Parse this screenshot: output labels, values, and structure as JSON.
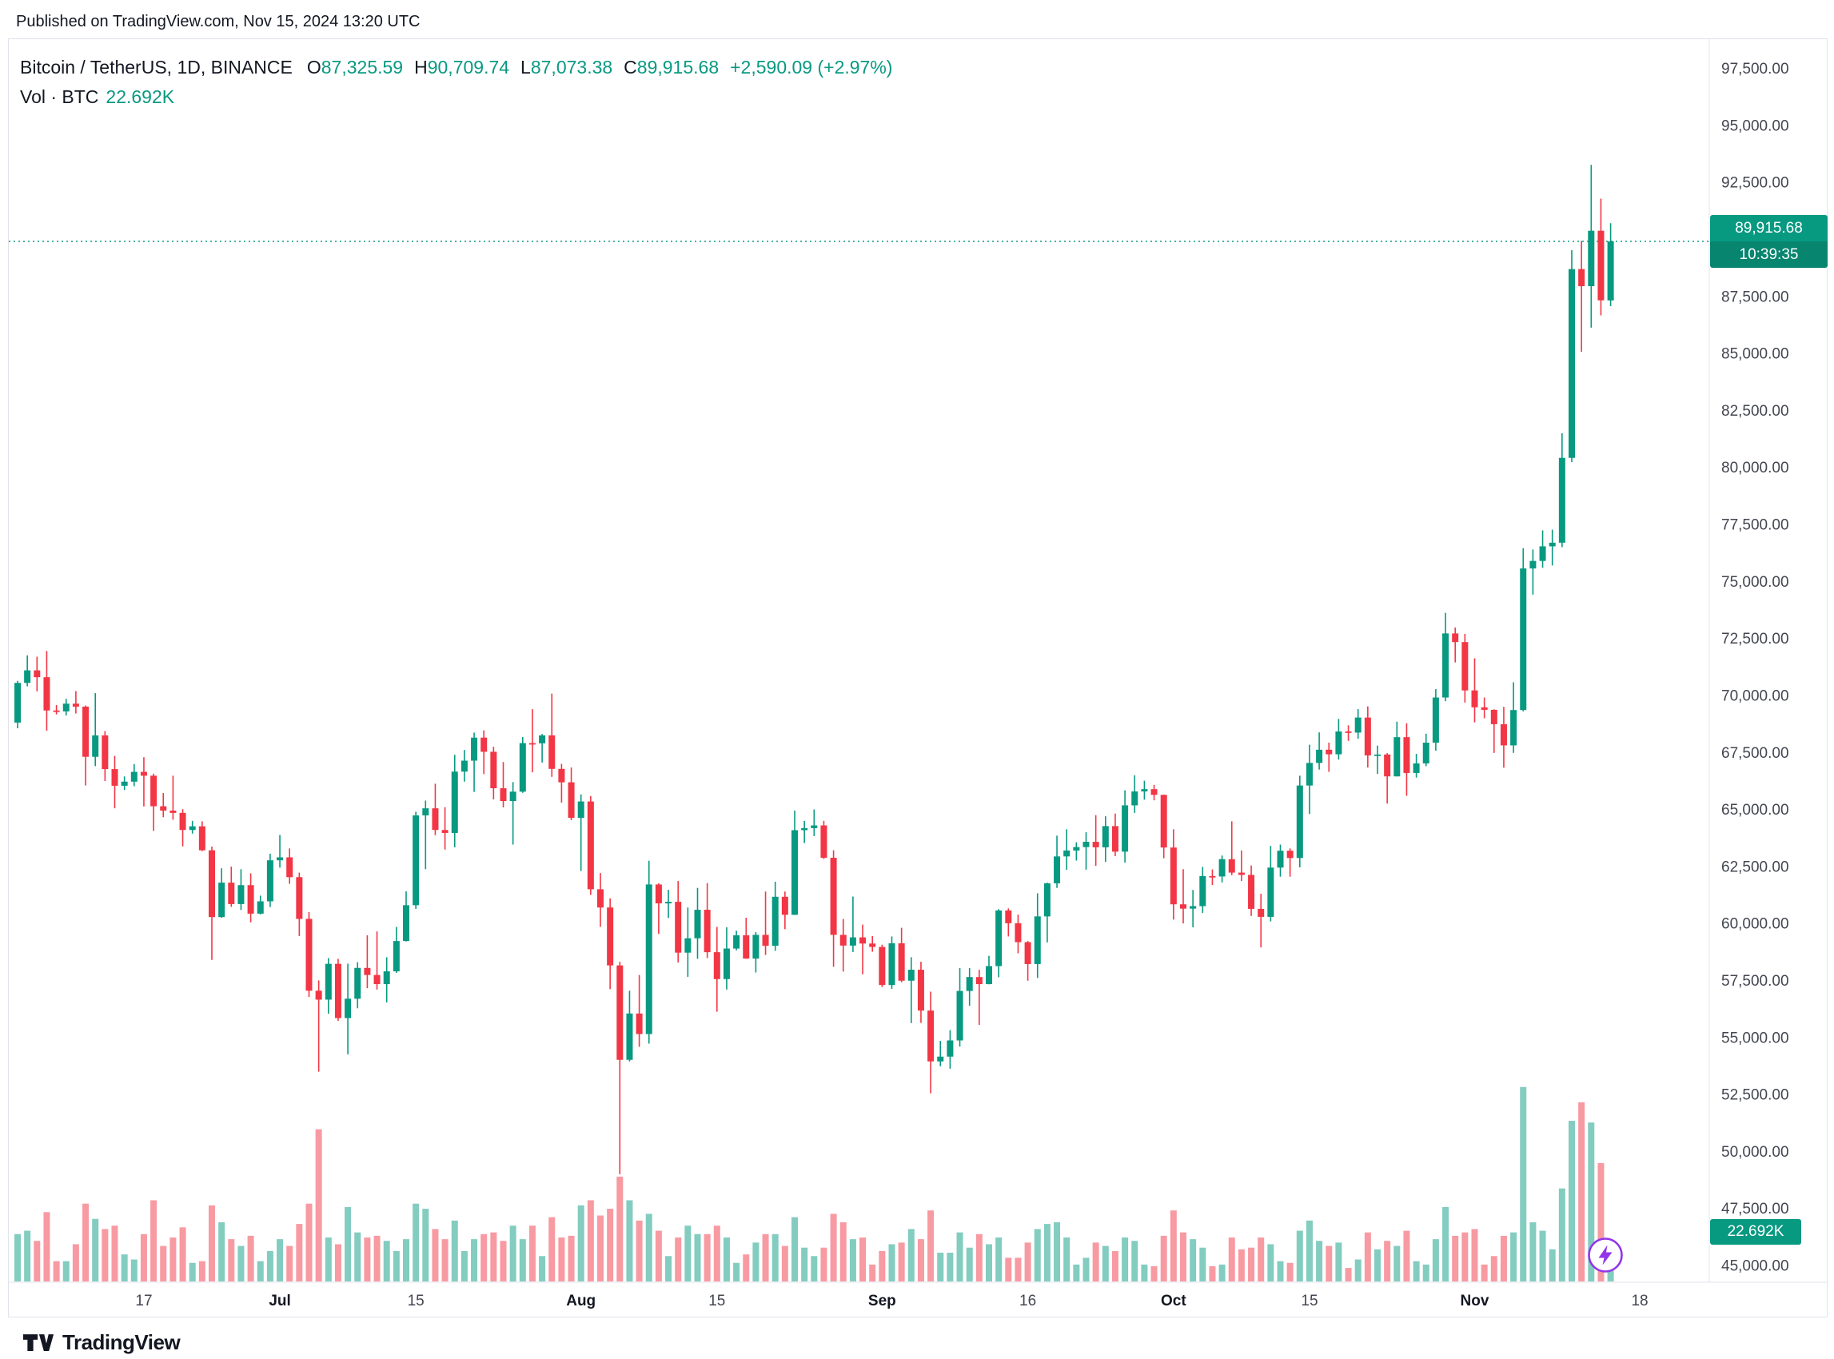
{
  "publish_line": "Published on TradingView.com, Nov 15, 2024 13:20 UTC",
  "header": {
    "symbol": "Bitcoin / TetherUS, 1D, BINANCE",
    "o_label": "O",
    "open": "87,325.59",
    "h_label": "H",
    "high": "90,709.74",
    "l_label": "L",
    "low": "87,073.38",
    "c_label": "C",
    "close": "89,915.68",
    "change": "+2,590.09 (+2.97%)",
    "vol_label": "Vol · BTC",
    "vol_value": "22.692K"
  },
  "price_badge": {
    "price": "89,915.68",
    "countdown": "10:39:35"
  },
  "volume_badge": "22.692K",
  "logo_text": "TradingView",
  "colors": {
    "up": "#089981",
    "down": "#f23645",
    "volume_up": "rgba(8,153,129,0.5)",
    "volume_down": "rgba(242,54,69,0.5)",
    "badge": "#089981",
    "separator": "#e0e3eb",
    "boost": "#9334ea",
    "axis_text": "#434651"
  },
  "chart_data": {
    "type": "candlestick",
    "title": "Bitcoin / TetherUS, 1D, BINANCE",
    "last_price": 89915.68,
    "countdown": "10:39:35",
    "volume_unit": "K BTC",
    "y_axis": {
      "min": 45000,
      "max": 97500,
      "step": 2500,
      "format": "#,##0.00"
    },
    "x_ticks": [
      {
        "label": "17",
        "index": 13,
        "major": false
      },
      {
        "label": "Jul",
        "index": 27,
        "major": true
      },
      {
        "label": "15",
        "index": 41,
        "major": false
      },
      {
        "label": "Aug",
        "index": 58,
        "major": true
      },
      {
        "label": "15",
        "index": 72,
        "major": false
      },
      {
        "label": "Sep",
        "index": 89,
        "major": true
      },
      {
        "label": "16",
        "index": 104,
        "major": false
      },
      {
        "label": "Oct",
        "index": 119,
        "major": true
      },
      {
        "label": "15",
        "index": 133,
        "major": false
      },
      {
        "label": "Nov",
        "index": 150,
        "major": true
      },
      {
        "label": "18",
        "index": 167,
        "major": false
      }
    ],
    "columns": [
      "date",
      "open",
      "high",
      "low",
      "close",
      "volume_k_btc"
    ],
    "rows": [
      [
        "Jun 4",
        68810,
        70640,
        68560,
        70550,
        28
      ],
      [
        "Jun 5",
        70550,
        71760,
        70400,
        71100,
        30
      ],
      [
        "Jun 6",
        71100,
        71700,
        70180,
        70800,
        24
      ],
      [
        "Jun 7",
        70800,
        71950,
        68450,
        69340,
        41
      ],
      [
        "Jun 8",
        69340,
        69580,
        69170,
        69300,
        12
      ],
      [
        "Jun 9",
        69300,
        69850,
        69120,
        69640,
        12
      ],
      [
        "Jun 10",
        69640,
        70190,
        69210,
        69510,
        22
      ],
      [
        "Jun 11",
        69510,
        69560,
        66050,
        67310,
        46
      ],
      [
        "Jun 12",
        67310,
        70100,
        66900,
        68250,
        37
      ],
      [
        "Jun 13",
        68250,
        68440,
        66250,
        66770,
        31
      ],
      [
        "Jun 14",
        66770,
        67350,
        65050,
        66040,
        33
      ],
      [
        "Jun 15",
        66040,
        66450,
        65850,
        66220,
        16
      ],
      [
        "Jun 16",
        66220,
        66990,
        66020,
        66650,
        13
      ],
      [
        "Jun 17",
        66650,
        67290,
        65130,
        66480,
        28
      ],
      [
        "Jun 18",
        66480,
        66570,
        64060,
        65140,
        48
      ],
      [
        "Jun 19",
        65140,
        65720,
        64660,
        64950,
        21
      ],
      [
        "Jun 20",
        64950,
        66480,
        64550,
        64850,
        26
      ],
      [
        "Jun 21",
        64850,
        65010,
        63380,
        64100,
        32
      ],
      [
        "Jun 22",
        64100,
        64500,
        63940,
        64260,
        11
      ],
      [
        "Jun 23",
        64260,
        64480,
        63170,
        63210,
        12
      ],
      [
        "Jun 24",
        63210,
        63370,
        58400,
        60280,
        45
      ],
      [
        "Jun 25",
        60280,
        62420,
        60250,
        61790,
        35
      ],
      [
        "Jun 26",
        61790,
        62490,
        60730,
        60850,
        25
      ],
      [
        "Jun 27",
        60850,
        62380,
        60590,
        61680,
        21
      ],
      [
        "Jun 28",
        61680,
        62200,
        60050,
        60430,
        27
      ],
      [
        "Jun 29",
        60430,
        61220,
        60400,
        60970,
        12
      ],
      [
        "Jun 30",
        60970,
        63060,
        60720,
        62770,
        18
      ],
      [
        "Jul 1",
        62770,
        63880,
        62450,
        62900,
        25
      ],
      [
        "Jul 2",
        62900,
        63290,
        61740,
        62030,
        21
      ],
      [
        "Jul 3",
        62030,
        62230,
        59450,
        60200,
        34
      ],
      [
        "Jul 4",
        60200,
        60500,
        56780,
        57050,
        46
      ],
      [
        "Jul 5",
        57050,
        57500,
        53500,
        56660,
        90
      ],
      [
        "Jul 6",
        56660,
        58480,
        56040,
        58230,
        26
      ],
      [
        "Jul 7",
        58230,
        58450,
        55730,
        55850,
        22
      ],
      [
        "Jul 8",
        55850,
        58240,
        54260,
        56700,
        44
      ],
      [
        "Jul 9",
        56700,
        58300,
        56280,
        58050,
        29
      ],
      [
        "Jul 10",
        58050,
        59480,
        57160,
        57740,
        26
      ],
      [
        "Jul 11",
        57740,
        59650,
        57100,
        57340,
        27
      ],
      [
        "Jul 12",
        57340,
        58520,
        56540,
        57900,
        24
      ],
      [
        "Jul 13",
        57900,
        59850,
        57830,
        59230,
        18
      ],
      [
        "Jul 14",
        59230,
        61410,
        59210,
        60800,
        25
      ],
      [
        "Jul 15",
        60800,
        64900,
        60640,
        64740,
        46
      ],
      [
        "Jul 16",
        64740,
        65390,
        62380,
        65050,
        43
      ],
      [
        "Jul 17",
        65050,
        66130,
        63870,
        64100,
        31
      ],
      [
        "Jul 18",
        64100,
        65100,
        63240,
        63970,
        25
      ],
      [
        "Jul 19",
        63970,
        67400,
        63340,
        66660,
        36
      ],
      [
        "Jul 20",
        66660,
        67610,
        66220,
        67140,
        18
      ],
      [
        "Jul 21",
        67140,
        68370,
        65770,
        68150,
        25
      ],
      [
        "Jul 22",
        68150,
        68470,
        66550,
        67530,
        28
      ],
      [
        "Jul 23",
        67530,
        67750,
        65440,
        65930,
        29
      ],
      [
        "Jul 24",
        65930,
        67080,
        65090,
        65370,
        24
      ],
      [
        "Jul 25",
        65370,
        66200,
        63460,
        65780,
        33
      ],
      [
        "Jul 26",
        65780,
        68180,
        65730,
        67910,
        25
      ],
      [
        "Jul 27",
        67910,
        69400,
        66630,
        67900,
        33
      ],
      [
        "Jul 28",
        67900,
        68310,
        67060,
        68250,
        15
      ],
      [
        "Jul 29",
        68250,
        70080,
        66430,
        66780,
        38
      ],
      [
        "Jul 30",
        66780,
        67000,
        65300,
        66190,
        26
      ],
      [
        "Jul 31",
        66190,
        66840,
        64530,
        64630,
        27
      ],
      [
        "Aug 1",
        64630,
        65660,
        62300,
        65350,
        45
      ],
      [
        "Aug 2",
        65350,
        65590,
        61250,
        61500,
        48
      ],
      [
        "Aug 3",
        61500,
        62210,
        59850,
        60700,
        39
      ],
      [
        "Aug 4",
        60700,
        61100,
        57120,
        58160,
        43
      ],
      [
        "Aug 5",
        58160,
        58320,
        49000,
        54020,
        62
      ],
      [
        "Aug 6",
        54020,
        57050,
        53950,
        56050,
        48
      ],
      [
        "Aug 7",
        56050,
        57740,
        54590,
        55150,
        36
      ],
      [
        "Aug 8",
        55150,
        62750,
        54730,
        61710,
        40
      ],
      [
        "Aug 9",
        61710,
        61760,
        59540,
        60880,
        30
      ],
      [
        "Aug 10",
        60880,
        61480,
        60240,
        60950,
        15
      ],
      [
        "Aug 11",
        60950,
        61860,
        58290,
        58720,
        26
      ],
      [
        "Aug 12",
        58720,
        60700,
        57660,
        59350,
        33
      ],
      [
        "Aug 13",
        59350,
        61560,
        58450,
        60600,
        28
      ],
      [
        "Aug 14",
        60600,
        61770,
        58480,
        58740,
        28
      ],
      [
        "Aug 15",
        58740,
        59850,
        56130,
        57560,
        33
      ],
      [
        "Aug 16",
        57560,
        59830,
        57100,
        58900,
        26
      ],
      [
        "Aug 17",
        58900,
        59680,
        58820,
        59480,
        11
      ],
      [
        "Aug 18",
        59480,
        60250,
        58450,
        58460,
        16
      ],
      [
        "Aug 19",
        58460,
        59620,
        57850,
        59500,
        23
      ],
      [
        "Aug 20",
        59500,
        61400,
        58620,
        59020,
        28
      ],
      [
        "Aug 21",
        59020,
        61830,
        58800,
        61170,
        28
      ],
      [
        "Aug 22",
        61170,
        61400,
        59750,
        60380,
        21
      ],
      [
        "Aug 23",
        60380,
        64950,
        60370,
        64090,
        38
      ],
      [
        "Aug 24",
        64090,
        64500,
        63530,
        64180,
        20
      ],
      [
        "Aug 25",
        64180,
        65000,
        63830,
        64300,
        15
      ],
      [
        "Aug 26",
        64300,
        64500,
        62830,
        62880,
        20
      ],
      [
        "Aug 27",
        62880,
        63210,
        58100,
        59500,
        40
      ],
      [
        "Aug 28",
        59500,
        60200,
        57890,
        59030,
        35
      ],
      [
        "Aug 29",
        59030,
        61180,
        58750,
        59390,
        25
      ],
      [
        "Aug 30",
        59390,
        59950,
        57770,
        59120,
        26
      ],
      [
        "Aug 31",
        59120,
        59450,
        58760,
        58970,
        10
      ],
      [
        "Sep 1",
        58970,
        59070,
        57210,
        57300,
        18
      ],
      [
        "Sep 2",
        57300,
        59430,
        57130,
        59130,
        22
      ],
      [
        "Sep 3",
        59130,
        59810,
        57420,
        57490,
        23
      ],
      [
        "Sep 4",
        57490,
        58520,
        55630,
        57970,
        31
      ],
      [
        "Sep 5",
        57970,
        58320,
        55640,
        56180,
        25
      ],
      [
        "Sep 6",
        56180,
        57010,
        52550,
        53950,
        42
      ],
      [
        "Sep 7",
        53950,
        54850,
        53740,
        54160,
        17
      ],
      [
        "Sep 8",
        54160,
        55320,
        53630,
        54870,
        17
      ],
      [
        "Sep 9",
        54870,
        58040,
        54600,
        57040,
        29
      ],
      [
        "Sep 10",
        57040,
        58040,
        56390,
        57650,
        20
      ],
      [
        "Sep 11",
        57650,
        57970,
        55550,
        57340,
        28
      ],
      [
        "Sep 12",
        57340,
        58580,
        57330,
        58130,
        22
      ],
      [
        "Sep 13",
        58130,
        60630,
        57640,
        60570,
        26
      ],
      [
        "Sep 14",
        60570,
        60660,
        59430,
        60010,
        14
      ],
      [
        "Sep 15",
        60010,
        60390,
        58690,
        59180,
        14
      ],
      [
        "Sep 16",
        59180,
        59230,
        57490,
        58220,
        23
      ],
      [
        "Sep 17",
        58220,
        61320,
        57610,
        60310,
        31
      ],
      [
        "Sep 18",
        60310,
        61790,
        59170,
        61760,
        34
      ],
      [
        "Sep 19",
        61760,
        63850,
        61560,
        62940,
        35
      ],
      [
        "Sep 20",
        62940,
        64130,
        62350,
        63200,
        26
      ],
      [
        "Sep 21",
        63200,
        63560,
        62760,
        63350,
        10
      ],
      [
        "Sep 22",
        63350,
        64000,
        62360,
        63580,
        14
      ],
      [
        "Sep 23",
        63580,
        64750,
        62530,
        63340,
        23
      ],
      [
        "Sep 24",
        63340,
        64700,
        62700,
        64270,
        21
      ],
      [
        "Sep 25",
        64270,
        64820,
        62950,
        63150,
        18
      ],
      [
        "Sep 26",
        63150,
        65840,
        62670,
        65180,
        26
      ],
      [
        "Sep 27",
        65180,
        66500,
        64850,
        65790,
        24
      ],
      [
        "Sep 28",
        65790,
        66260,
        65430,
        65890,
        10
      ],
      [
        "Sep 29",
        65890,
        66080,
        65400,
        65640,
        9
      ],
      [
        "Sep 30",
        65640,
        65650,
        62860,
        63330,
        27
      ],
      [
        "Oct 1",
        63330,
        64130,
        60170,
        60840,
        42
      ],
      [
        "Oct 2",
        60840,
        62380,
        60000,
        60650,
        29
      ],
      [
        "Oct 3",
        60650,
        61470,
        59830,
        60760,
        25
      ],
      [
        "Oct 4",
        60760,
        62480,
        60460,
        62080,
        20
      ],
      [
        "Oct 5",
        62080,
        62370,
        61690,
        62060,
        9
      ],
      [
        "Oct 6",
        62060,
        62980,
        61800,
        62820,
        10
      ],
      [
        "Oct 7",
        62820,
        64480,
        62120,
        62230,
        26
      ],
      [
        "Oct 8",
        62230,
        63200,
        61860,
        62130,
        19
      ],
      [
        "Oct 9",
        62130,
        62540,
        60330,
        60640,
        20
      ],
      [
        "Oct 10",
        60640,
        61300,
        58950,
        60290,
        26
      ],
      [
        "Oct 11",
        60290,
        63400,
        60090,
        62450,
        22
      ],
      [
        "Oct 12",
        62450,
        63460,
        62050,
        63190,
        12
      ],
      [
        "Oct 13",
        63190,
        63290,
        62050,
        62870,
        11
      ],
      [
        "Oct 14",
        62870,
        66480,
        62460,
        66050,
        30
      ],
      [
        "Oct 15",
        66050,
        67840,
        64800,
        67040,
        36
      ],
      [
        "Oct 16",
        67040,
        68380,
        66750,
        67620,
        24
      ],
      [
        "Oct 17",
        67620,
        67930,
        66650,
        67420,
        21
      ],
      [
        "Oct 18",
        67420,
        68970,
        67190,
        68420,
        23
      ],
      [
        "Oct 19",
        68420,
        68690,
        68010,
        68370,
        8
      ],
      [
        "Oct 20",
        68370,
        69400,
        68100,
        69030,
        13
      ],
      [
        "Oct 21",
        69030,
        69520,
        66840,
        67370,
        29
      ],
      [
        "Oct 22",
        67370,
        67800,
        66560,
        67410,
        19
      ],
      [
        "Oct 23",
        67410,
        67470,
        65260,
        66450,
        24
      ],
      [
        "Oct 24",
        66450,
        68850,
        66450,
        68170,
        21
      ],
      [
        "Oct 25",
        68170,
        68780,
        65600,
        66600,
        30
      ],
      [
        "Oct 26",
        66600,
        67440,
        66400,
        67020,
        12
      ],
      [
        "Oct 27",
        67020,
        68320,
        66900,
        67930,
        10
      ],
      [
        "Oct 28",
        67930,
        70280,
        67580,
        69910,
        25
      ],
      [
        "Oct 29",
        69910,
        73620,
        69750,
        72720,
        44
      ],
      [
        "Oct 30",
        72720,
        72980,
        71450,
        72340,
        27
      ],
      [
        "Oct 31",
        72340,
        72700,
        69690,
        70220,
        29
      ],
      [
        "Nov 1",
        70220,
        71630,
        68820,
        69480,
        31
      ],
      [
        "Nov 2",
        69480,
        69910,
        69000,
        69370,
        10
      ],
      [
        "Nov 3",
        69370,
        69390,
        67480,
        68740,
        15
      ],
      [
        "Nov 4",
        68740,
        69500,
        66830,
        67810,
        27
      ],
      [
        "Nov 5",
        67810,
        70580,
        67480,
        69360,
        29
      ],
      [
        "Nov 6",
        69360,
        76460,
        69300,
        75570,
        115
      ],
      [
        "Nov 7",
        75570,
        76400,
        74420,
        75900,
        35
      ],
      [
        "Nov 8",
        75900,
        77240,
        75600,
        76540,
        30
      ],
      [
        "Nov 9",
        76540,
        77270,
        75700,
        76700,
        19
      ],
      [
        "Nov 10",
        76700,
        81500,
        76500,
        80420,
        55
      ],
      [
        "Nov 11",
        80420,
        89530,
        80230,
        88700,
        95
      ],
      [
        "Nov 12",
        88700,
        89940,
        85070,
        87950,
        106
      ],
      [
        "Nov 13",
        87950,
        93270,
        86130,
        90380,
        94
      ],
      [
        "Nov 14",
        90380,
        91790,
        86670,
        87330,
        70
      ],
      [
        "Nov 15",
        87325.59,
        90709.74,
        87073.38,
        89915.68,
        22.692
      ]
    ]
  }
}
